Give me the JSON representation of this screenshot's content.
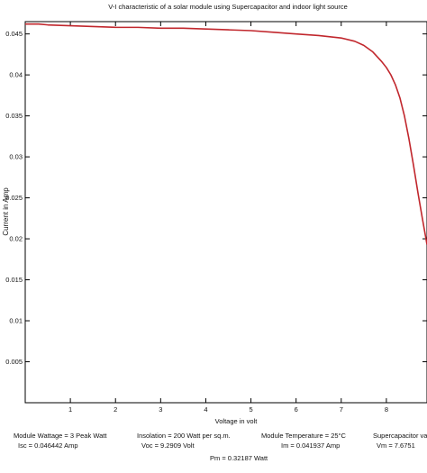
{
  "chart_data": {
    "type": "line",
    "title": "V-I characteristic of a  solar module  using Supercapacitor and indoor light source",
    "xlabel": "Voltage in volt",
    "ylabel": "Current in Amp",
    "xlim": [
      0,
      8.9
    ],
    "ylim": [
      0,
      0.0465
    ],
    "xticks": [
      1,
      2,
      3,
      4,
      5,
      6,
      7,
      8
    ],
    "yticks": [
      0.005,
      0.01,
      0.015,
      0.02,
      0.025,
      0.03,
      0.035,
      0.04,
      0.045
    ],
    "ytick_labels": [
      "0.005",
      "0.01",
      "0.015",
      "0.02",
      "0.025",
      "0.03",
      "0.035",
      "0.04",
      "0.045"
    ],
    "grid": false,
    "series": [
      {
        "color": "#c1272d",
        "x": [
          0.0,
          0.3,
          0.5,
          1.0,
          1.5,
          2.0,
          2.5,
          3.0,
          3.5,
          4.0,
          4.5,
          5.0,
          5.5,
          6.0,
          6.5,
          7.0,
          7.3,
          7.5,
          7.7,
          7.9,
          8.0,
          8.1,
          8.2,
          8.3,
          8.4,
          8.5,
          8.6,
          8.7,
          8.8,
          8.9
        ],
        "y": [
          0.0462,
          0.0462,
          0.0461,
          0.046,
          0.0459,
          0.0458,
          0.0458,
          0.0457,
          0.0457,
          0.0456,
          0.0455,
          0.0454,
          0.0452,
          0.045,
          0.0448,
          0.0445,
          0.0441,
          0.0436,
          0.0428,
          0.0416,
          0.0409,
          0.04,
          0.0388,
          0.0372,
          0.035,
          0.0322,
          0.029,
          0.0256,
          0.0224,
          0.0193
        ]
      }
    ]
  },
  "info": {
    "wattage": "Module Wattage = 3 Peak Watt",
    "isc": "Isc = 0.046442 Amp",
    "insolation": "Insolation = 200 Watt per sq.m.",
    "voc": "Voc = 9.2909 Volt",
    "temperature": "Module Temperature = 25°C",
    "im": "Im = 0.041937 Amp",
    "supercap": "Supercapacitor value",
    "vm": "Vm = 7.6751",
    "pm": "Pm = 0.32187 Watt"
  }
}
